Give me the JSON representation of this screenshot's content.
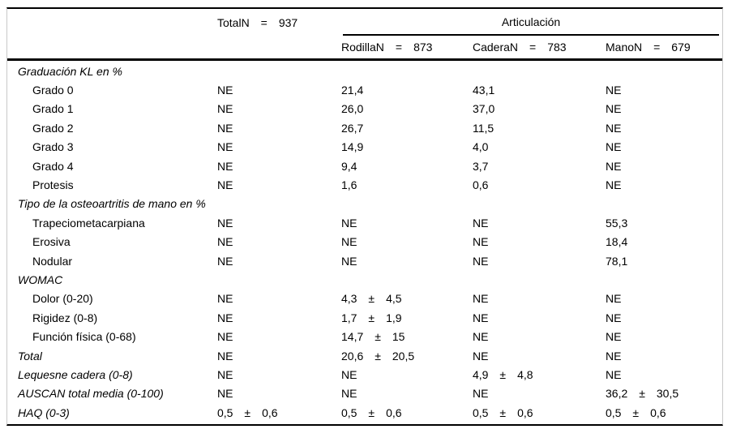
{
  "table": {
    "header": {
      "total": {
        "label": "TotalN",
        "eq": "=",
        "value": "937"
      },
      "articulacion_label": "Articulación",
      "columns": [
        {
          "label": "RodillaN",
          "eq": "=",
          "value": "873"
        },
        {
          "label": "CaderaN",
          "eq": "=",
          "value": "783"
        },
        {
          "label": "ManoN",
          "eq": "=",
          "value": "679"
        }
      ]
    },
    "rows": [
      {
        "label": "Graduación KL en %",
        "style": "section",
        "cells": [
          "",
          "",
          "",
          ""
        ]
      },
      {
        "label": "Grado 0",
        "style": "item",
        "cells": [
          "NE",
          "21,4",
          "43,1",
          "NE"
        ]
      },
      {
        "label": "Grado 1",
        "style": "item",
        "cells": [
          "NE",
          "26,0",
          "37,0",
          "NE"
        ]
      },
      {
        "label": "Grado 2",
        "style": "item",
        "cells": [
          "NE",
          "26,7",
          "11,5",
          "NE"
        ]
      },
      {
        "label": "Grado 3",
        "style": "item",
        "cells": [
          "NE",
          "14,9",
          "4,0",
          "NE"
        ]
      },
      {
        "label": "Grado 4",
        "style": "item",
        "cells": [
          "NE",
          "9,4",
          "3,7",
          "NE"
        ]
      },
      {
        "label": "Protesis",
        "style": "item",
        "cells": [
          "NE",
          "1,6",
          "0,6",
          "NE"
        ]
      },
      {
        "label": "Tipo de la osteoartritis de mano en %",
        "style": "section",
        "cells": [
          "",
          "",
          "",
          ""
        ]
      },
      {
        "label": "Trapeciometacarpiana",
        "style": "item",
        "cells": [
          "NE",
          "NE",
          "NE",
          "55,3"
        ]
      },
      {
        "label": "Erosiva",
        "style": "item",
        "cells": [
          "NE",
          "NE",
          "NE",
          "18,4"
        ]
      },
      {
        "label": "Nodular",
        "style": "item",
        "cells": [
          "NE",
          "NE",
          "NE",
          "78,1"
        ]
      },
      {
        "label": "WOMAC",
        "style": "section",
        "cells": [
          "",
          "",
          "",
          ""
        ]
      },
      {
        "label": "Dolor (0-20)",
        "style": "item",
        "cells": [
          "NE",
          "4,3 ± 4,5",
          "NE",
          "NE"
        ]
      },
      {
        "label": "Rigidez (0-8)",
        "style": "item",
        "cells": [
          "NE",
          "1,7 ± 1,9",
          "NE",
          "NE"
        ]
      },
      {
        "label": "Función física (0-68)",
        "style": "item",
        "cells": [
          "NE",
          "14,7 ± 15",
          "NE",
          "NE"
        ]
      },
      {
        "label": "Total",
        "style": "italic",
        "cells": [
          "NE",
          "20,6 ± 20,5",
          "NE",
          "NE"
        ]
      },
      {
        "label": "Lequesne cadera (0-8)",
        "style": "italic",
        "cells": [
          "NE",
          "NE",
          "4,9 ± 4,8",
          "NE"
        ]
      },
      {
        "label": "AUSCAN total media (0-100)",
        "style": "italic",
        "cells": [
          "NE",
          "NE",
          "NE",
          "36,2 ± 30,5"
        ]
      },
      {
        "label": "HAQ (0-3)",
        "style": "italic",
        "cells": [
          "0,5 ± 0,6",
          "0,5 ± 0,6",
          "0,5 ± 0,6",
          "0,5 ± 0,6"
        ]
      }
    ]
  }
}
